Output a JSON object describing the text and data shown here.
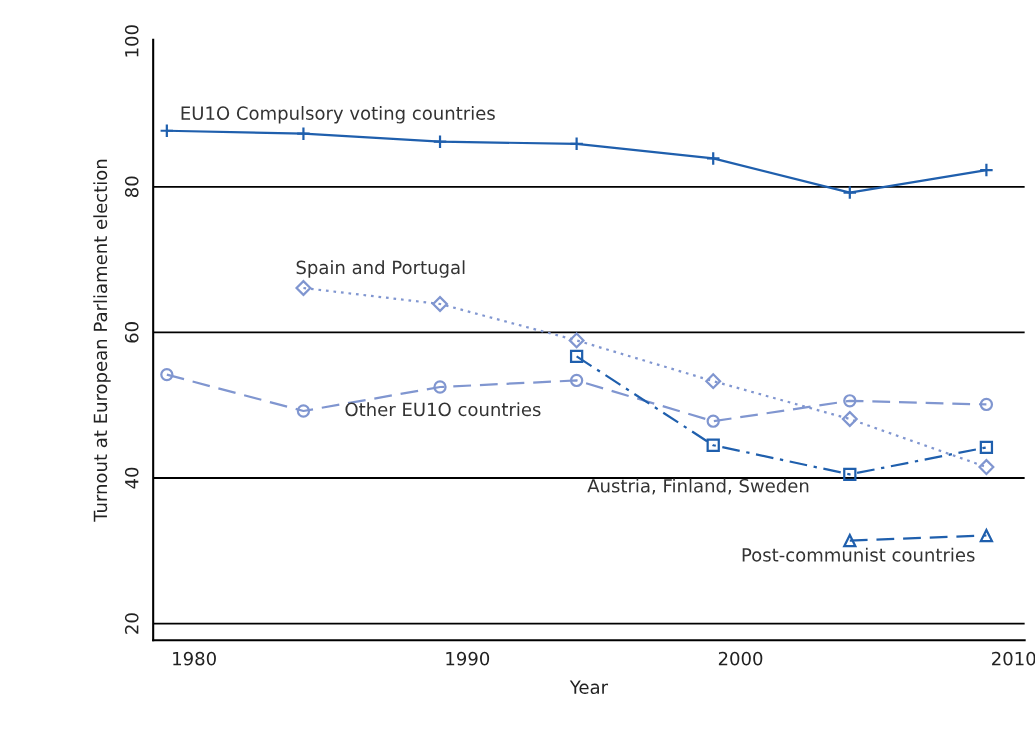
{
  "chart_data": {
    "type": "line",
    "xlabel": "Year",
    "ylabel": "Turnout at European Parliament election",
    "xlim": [
      1978.5,
      2010.4
    ],
    "xticks": [
      1980,
      1990,
      2000,
      2010
    ],
    "ylim": [
      17.7,
      100.2
    ],
    "yticks": [
      20,
      40,
      60,
      80,
      100
    ],
    "grid": "y",
    "legend": false,
    "series": [
      {
        "name": "EU1O Compulsory voting countries",
        "color": "#1f5fad",
        "marker": "cross",
        "line_style": "solid",
        "x": [
          1979,
          1984,
          1989,
          1994,
          1999,
          2004,
          2009
        ],
        "values": [
          87.7,
          87.3,
          86.2,
          85.9,
          83.9,
          79.2,
          82.3
        ]
      },
      {
        "name": "Spain and Portugal",
        "color": "#8096d0",
        "marker": "diamond",
        "line_style": "dotted",
        "x": [
          1984,
          1989,
          1994,
          1999,
          2004,
          2009
        ],
        "values": [
          66.1,
          63.9,
          58.9,
          53.3,
          48.1,
          41.5
        ]
      },
      {
        "name": "Other EU1O countries",
        "color": "#8096d0",
        "marker": "circle",
        "line_style": "dashed",
        "x": [
          1979,
          1984,
          1989,
          1994,
          1999,
          2004,
          2009
        ],
        "values": [
          54.2,
          49.2,
          52.5,
          53.4,
          47.8,
          50.6,
          50.1
        ]
      },
      {
        "name": "Austria, Finland, Sweden",
        "color": "#1f5fad",
        "marker": "square",
        "line_style": "dashdot",
        "x": [
          1994,
          1999,
          2004,
          2009
        ],
        "values": [
          56.7,
          44.5,
          40.5,
          44.2
        ]
      },
      {
        "name": "Post-communist countries",
        "color": "#1f5fad",
        "marker": "triangle",
        "line_style": "dashed",
        "x": [
          2004,
          2009
        ],
        "values": [
          31.4,
          32.1
        ]
      }
    ]
  }
}
